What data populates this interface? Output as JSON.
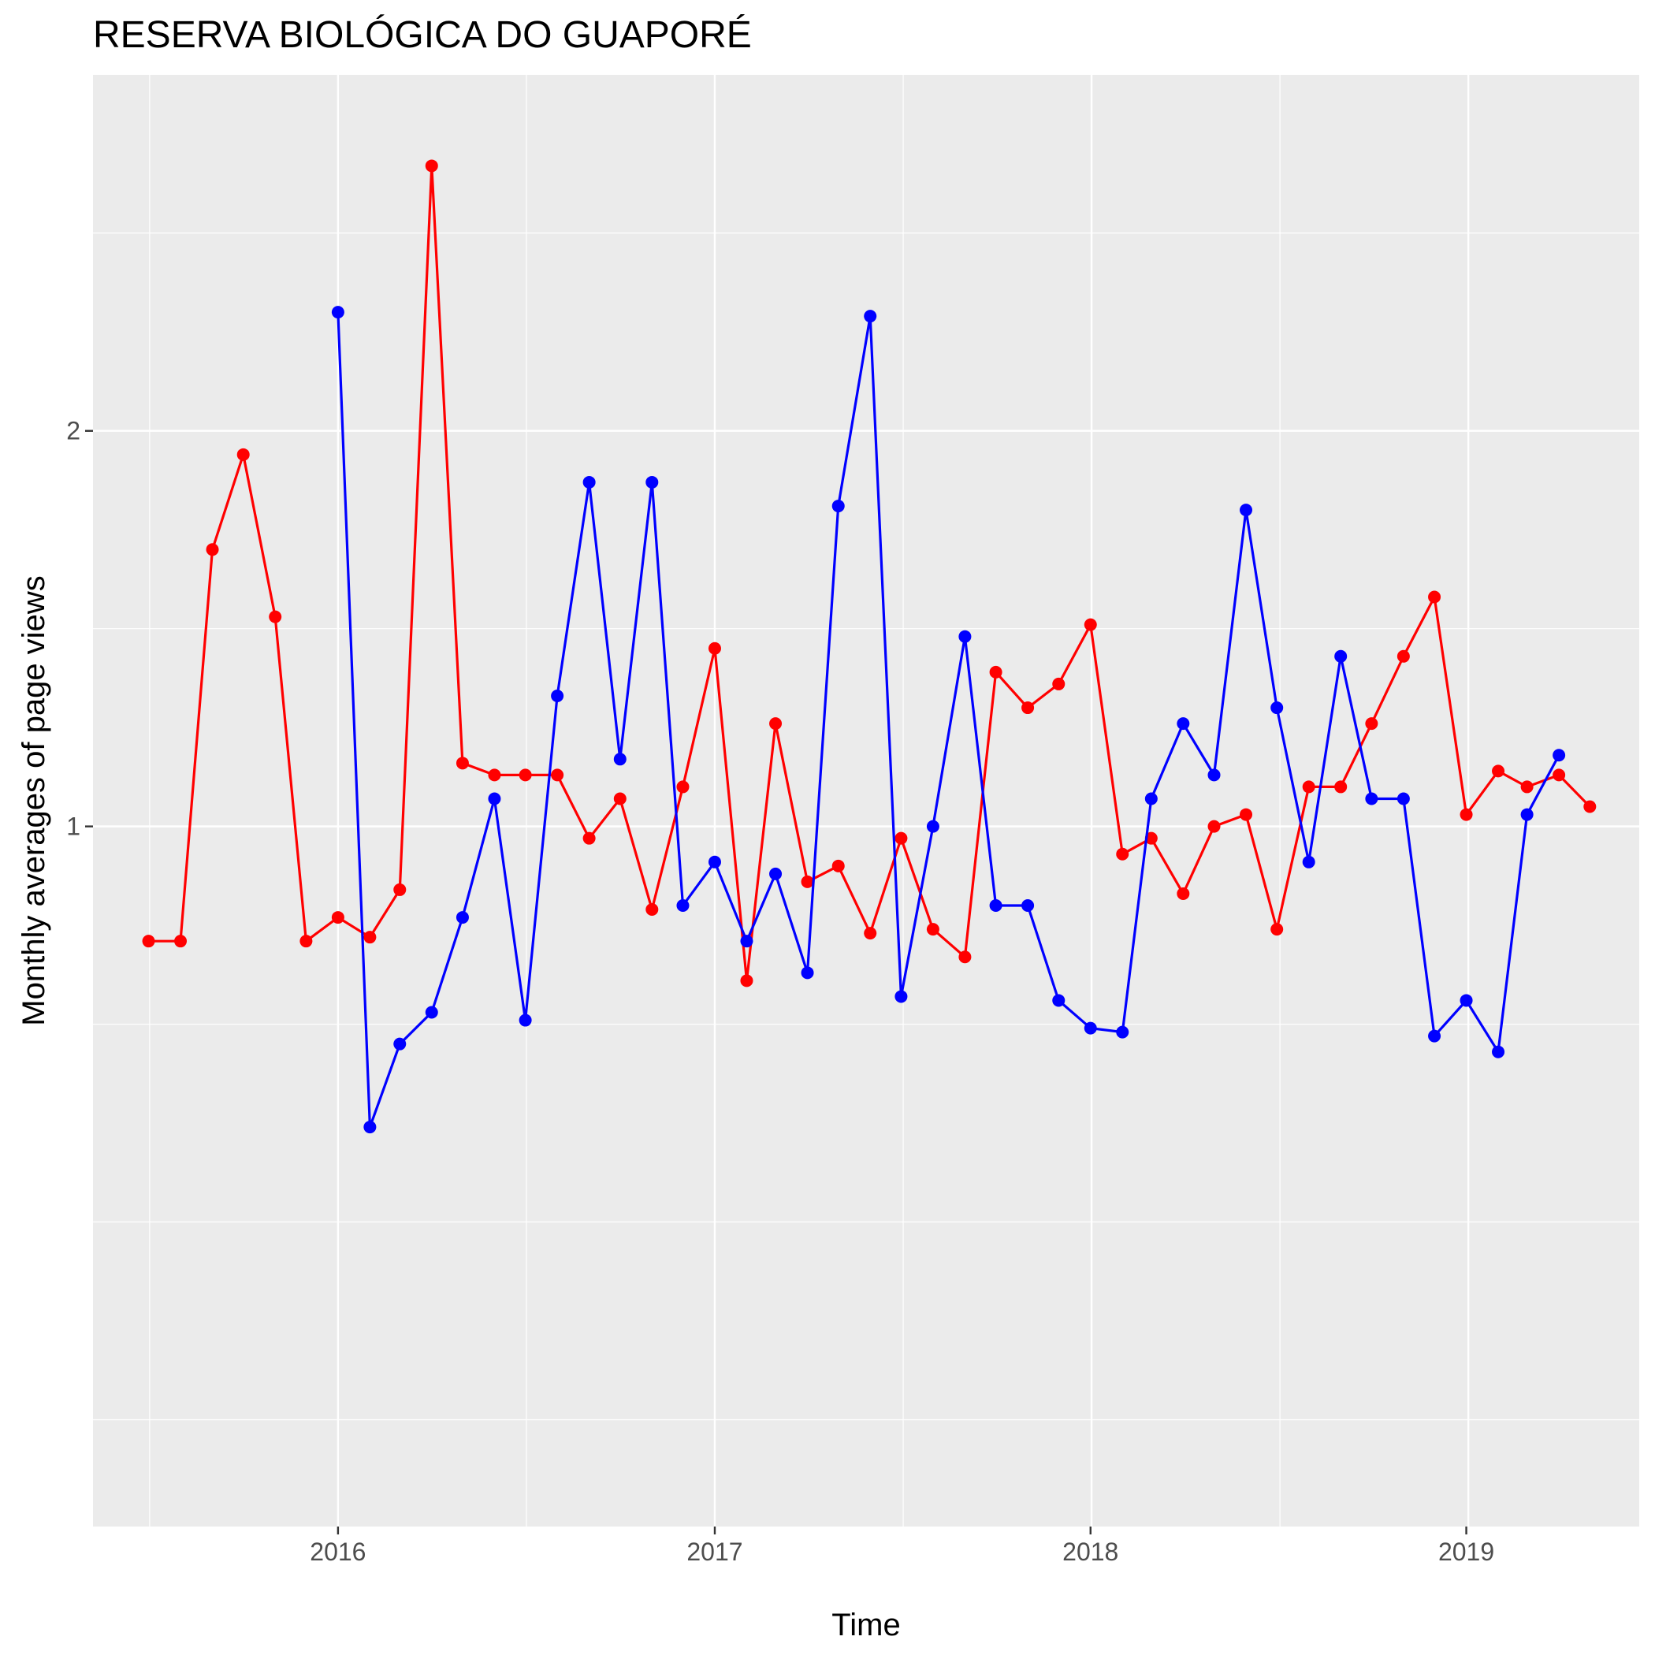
{
  "chart_data": {
    "type": "line",
    "title": "RESERVA BIOLÓGICA DO GUAPORÉ",
    "xlabel": "Time",
    "ylabel": "Monthly averages of page views",
    "x_ticks": [
      {
        "date": "2016-01-01",
        "label": "2016"
      },
      {
        "date": "2017-01-01",
        "label": "2017"
      },
      {
        "date": "2018-01-01",
        "label": "2018"
      },
      {
        "date": "2019-01-01",
        "label": "2019"
      }
    ],
    "y_ticks": [
      {
        "value": 1,
        "label": "1"
      },
      {
        "value": 2,
        "label": "2"
      }
    ],
    "xlim": [
      "2015-05-08",
      "2019-06-18"
    ],
    "ylim": [
      -0.77,
      2.9
    ],
    "grid": true,
    "series": [
      {
        "color": "#ff0000",
        "x": [
          "2015-07-01",
          "2015-08-01",
          "2015-09-01",
          "2015-10-01",
          "2015-11-01",
          "2015-12-01",
          "2016-01-01",
          "2016-02-01",
          "2016-03-01",
          "2016-04-01",
          "2016-05-01",
          "2016-06-01",
          "2016-07-01",
          "2016-08-01",
          "2016-09-01",
          "2016-10-01",
          "2016-11-01",
          "2016-12-01",
          "2017-01-01",
          "2017-02-01",
          "2017-03-01",
          "2017-04-01",
          "2017-05-01",
          "2017-06-01",
          "2017-07-01",
          "2017-08-01",
          "2017-09-01",
          "2017-10-01",
          "2017-11-01",
          "2017-12-01",
          "2018-01-01",
          "2018-02-01",
          "2018-03-01",
          "2018-04-01",
          "2018-05-01",
          "2018-06-01",
          "2018-07-01",
          "2018-08-01",
          "2018-09-01",
          "2018-10-01",
          "2018-11-01",
          "2018-12-01",
          "2019-01-01",
          "2019-02-01",
          "2019-03-01",
          "2019-04-01",
          "2019-05-01"
        ],
        "values": [
          0.71,
          0.71,
          1.7,
          1.94,
          1.53,
          0.71,
          0.77,
          0.72,
          0.84,
          2.67,
          1.16,
          1.13,
          1.13,
          1.13,
          0.97,
          1.07,
          0.79,
          1.1,
          1.45,
          0.61,
          1.26,
          0.86,
          0.9,
          0.73,
          0.97,
          0.74,
          0.67,
          1.39,
          1.3,
          1.36,
          1.51,
          0.93,
          0.97,
          0.83,
          1.0,
          1.03,
          0.74,
          1.1,
          1.1,
          1.26,
          1.43,
          1.58,
          1.03,
          1.14,
          1.1,
          1.13,
          1.05
        ]
      },
      {
        "color": "#0000ff",
        "x": [
          "2016-01-01",
          "2016-02-01",
          "2016-03-01",
          "2016-04-01",
          "2016-05-01",
          "2016-06-01",
          "2016-07-01",
          "2016-08-01",
          "2016-09-01",
          "2016-10-01",
          "2016-11-01",
          "2016-12-01",
          "2017-01-01",
          "2017-02-01",
          "2017-03-01",
          "2017-04-01",
          "2017-05-01",
          "2017-06-01",
          "2017-07-01",
          "2017-08-01",
          "2017-09-01",
          "2017-10-01",
          "2017-11-01",
          "2017-12-01",
          "2018-01-01",
          "2018-02-01",
          "2018-03-01",
          "2018-04-01",
          "2018-05-01",
          "2018-06-01",
          "2018-07-01",
          "2018-08-01",
          "2018-09-01",
          "2018-10-01",
          "2018-11-01",
          "2018-12-01",
          "2019-01-01",
          "2019-02-01",
          "2019-03-01",
          "2019-04-01"
        ],
        "values": [
          2.3,
          0.24,
          0.45,
          0.53,
          0.77,
          1.07,
          0.51,
          1.33,
          1.87,
          1.17,
          1.87,
          0.8,
          0.91,
          0.71,
          0.88,
          0.63,
          1.81,
          2.29,
          0.57,
          1.0,
          1.48,
          0.8,
          0.8,
          0.56,
          0.49,
          0.48,
          1.07,
          1.26,
          1.13,
          1.8,
          1.3,
          0.91,
          1.43,
          1.07,
          1.07,
          0.47,
          0.56,
          0.43,
          1.03,
          1.18
        ]
      }
    ]
  }
}
